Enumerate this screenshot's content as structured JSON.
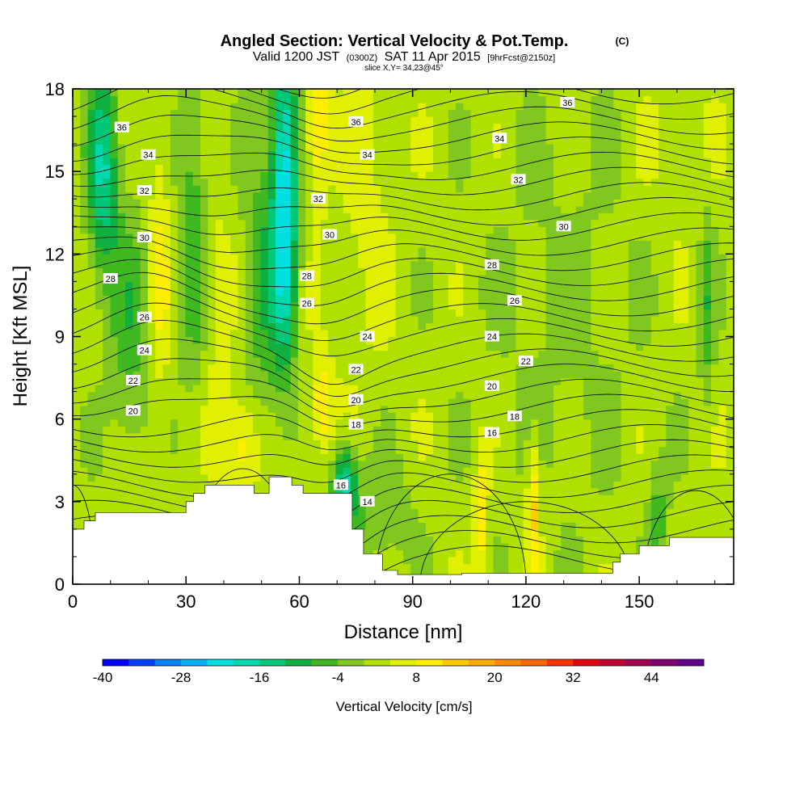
{
  "chart_data": {
    "type": "heatmap",
    "title": "Angled Section: Vertical Velocity & Pot.Temp.",
    "title_unit": "(C)",
    "subtitle_parts": [
      "Valid 1200 JST",
      "(0300Z)",
      "SAT 11 Apr 2015",
      "[9hrFcst@2150z]"
    ],
    "slice_label": "slice X,Y= 34,23@45°",
    "xlabel": "Distance [nm]",
    "ylabel": "Height [Kft MSL]",
    "xlim": [
      0,
      175
    ],
    "ylim": [
      0,
      18
    ],
    "x_ticks": [
      0,
      30,
      60,
      90,
      120,
      150
    ],
    "y_ticks": [
      0,
      3,
      6,
      9,
      12,
      15,
      18
    ],
    "colorbar": {
      "label": "Vertical Velocity [cm/s]",
      "tick_labels": [
        "-40",
        "-28",
        "-16",
        "-4",
        "8",
        "20",
        "32",
        "44"
      ],
      "bounds": [
        -40,
        52
      ],
      "step": 4,
      "colors": [
        "#0000ff",
        "#0040ff",
        "#0080ff",
        "#00b0ff",
        "#00e0e0",
        "#00d8b0",
        "#00c878",
        "#10b040",
        "#40b820",
        "#80c820",
        "#b0e000",
        "#e0f000",
        "#ffee00",
        "#ffcc00",
        "#ffaa00",
        "#ff8800",
        "#ff6600",
        "#ff3300",
        "#e00010",
        "#c00030",
        "#a00050",
        "#800070",
        "#600090"
      ]
    },
    "contour_labels": [
      {
        "text": "36",
        "x": 13,
        "y": 16.6
      },
      {
        "text": "34",
        "x": 20,
        "y": 15.6
      },
      {
        "text": "32",
        "x": 19,
        "y": 14.3
      },
      {
        "text": "30",
        "x": 19,
        "y": 12.6
      },
      {
        "text": "28",
        "x": 10,
        "y": 11.1
      },
      {
        "text": "26",
        "x": 19,
        "y": 9.7
      },
      {
        "text": "24",
        "x": 19,
        "y": 8.5
      },
      {
        "text": "22",
        "x": 16,
        "y": 7.4
      },
      {
        "text": "20",
        "x": 16,
        "y": 6.3
      },
      {
        "text": "36",
        "x": 75,
        "y": 16.8
      },
      {
        "text": "34",
        "x": 78,
        "y": 15.6
      },
      {
        "text": "32",
        "x": 65,
        "y": 14.0
      },
      {
        "text": "30",
        "x": 68,
        "y": 12.7
      },
      {
        "text": "28",
        "x": 62,
        "y": 11.2
      },
      {
        "text": "26",
        "x": 62,
        "y": 10.2
      },
      {
        "text": "24",
        "x": 78,
        "y": 9.0
      },
      {
        "text": "22",
        "x": 75,
        "y": 7.8
      },
      {
        "text": "20",
        "x": 75,
        "y": 6.7
      },
      {
        "text": "18",
        "x": 75,
        "y": 5.8
      },
      {
        "text": "16",
        "x": 71,
        "y": 3.6
      },
      {
        "text": "14",
        "x": 78,
        "y": 3.0
      },
      {
        "text": "36",
        "x": 131,
        "y": 17.5
      },
      {
        "text": "34",
        "x": 113,
        "y": 16.2
      },
      {
        "text": "32",
        "x": 118,
        "y": 14.7
      },
      {
        "text": "30",
        "x": 130,
        "y": 13.0
      },
      {
        "text": "28",
        "x": 111,
        "y": 11.6
      },
      {
        "text": "26",
        "x": 117,
        "y": 10.3
      },
      {
        "text": "24",
        "x": 111,
        "y": 9.0
      },
      {
        "text": "22",
        "x": 120,
        "y": 8.1
      },
      {
        "text": "20",
        "x": 111,
        "y": 7.2
      },
      {
        "text": "18",
        "x": 117,
        "y": 6.1
      },
      {
        "text": "16",
        "x": 111,
        "y": 5.5
      }
    ]
  }
}
